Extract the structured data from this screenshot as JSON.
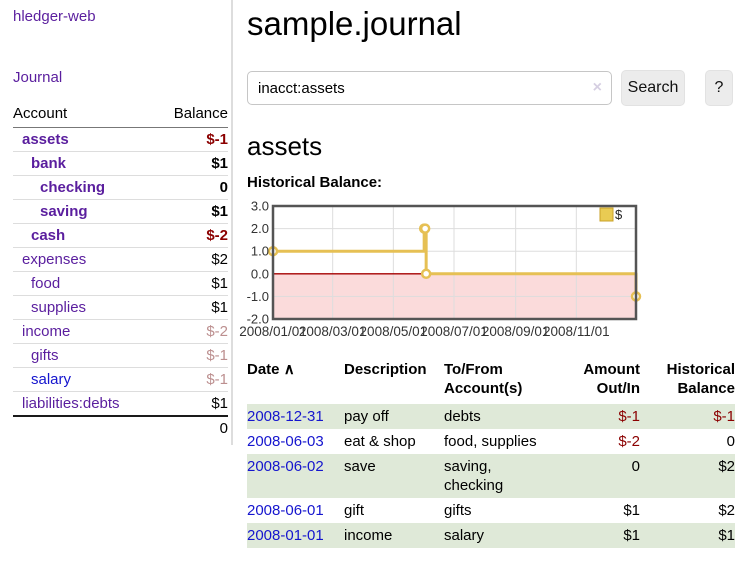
{
  "sidebar": {
    "app_title": "hledger-web",
    "journal_label": "Journal",
    "accounts_table": {
      "headers": {
        "account": "Account",
        "balance": "Balance"
      },
      "rows": [
        {
          "name": "assets",
          "balance": "$-1",
          "depth": 1,
          "bold": true,
          "neg": "strong"
        },
        {
          "name": "bank",
          "balance": "$1",
          "depth": 2,
          "bold": true,
          "neg": "none"
        },
        {
          "name": "checking",
          "balance": "0",
          "depth": 3,
          "bold": true,
          "neg": "none"
        },
        {
          "name": "saving",
          "balance": "$1",
          "depth": 3,
          "bold": true,
          "neg": "none"
        },
        {
          "name": "cash",
          "balance": "$-2",
          "depth": 2,
          "bold": true,
          "neg": "strong"
        },
        {
          "name": "expenses",
          "balance": "$2",
          "depth": 1,
          "bold": false,
          "neg": "none"
        },
        {
          "name": "food",
          "balance": "$1",
          "depth": 2,
          "bold": false,
          "neg": "none"
        },
        {
          "name": "supplies",
          "balance": "$1",
          "depth": 2,
          "bold": false,
          "neg": "none"
        },
        {
          "name": "income",
          "balance": "$-2",
          "depth": 1,
          "bold": false,
          "neg": "muted"
        },
        {
          "name": "gifts",
          "balance": "$-1",
          "depth": 2,
          "bold": false,
          "neg": "muted"
        },
        {
          "name": "salary",
          "balance": "$-1",
          "depth": 2,
          "bold": false,
          "neg": "muted",
          "link_style": "unvisited"
        },
        {
          "name": "liabilities:debts",
          "balance": "$1",
          "depth": 1,
          "bold": false,
          "neg": "none"
        }
      ],
      "total": "0"
    }
  },
  "main": {
    "title": "sample.journal",
    "search": {
      "value": "inacct:assets",
      "clear_icon": "×",
      "button_label": "Search",
      "help_label": "?"
    },
    "account_heading": "assets",
    "chart_label": "Historical Balance:"
  },
  "chart_data": {
    "type": "line",
    "step": true,
    "series": [
      {
        "name": "$",
        "x": [
          "2008-01-01",
          "2008-06-01",
          "2008-06-02",
          "2008-06-03",
          "2008-12-31"
        ],
        "values": [
          1,
          2,
          2,
          0,
          -1
        ]
      }
    ],
    "x_range": [
      "2008-01-01",
      "2008-12-31"
    ],
    "ylim": [
      -2.0,
      3.0
    ],
    "ytick_labels": [
      "3.0",
      "2.0",
      "1.0",
      "0.0",
      "-1.0",
      "-2.0"
    ],
    "yticks": [
      3.0,
      2.0,
      1.0,
      0.0,
      -1.0,
      -2.0
    ],
    "xtick_labels": [
      "2008/01/01",
      "2008/03/01",
      "2008/05/01",
      "2008/07/01",
      "2008/09/01",
      "2008/11/01"
    ],
    "legend": {
      "label": "$",
      "position": "top-right"
    },
    "grid": true,
    "zero_line": true,
    "negative_region_shaded": true
  },
  "register_table": {
    "headers": {
      "date": "Date",
      "sort_indicator": "∧",
      "description": "Description",
      "accounts": "To/From Account(s)",
      "amount": "Amount Out/In",
      "balance": "Historical Balance"
    },
    "rows": [
      {
        "date": "2008-12-31",
        "description": "pay off",
        "accounts": "debts",
        "amount": "$-1",
        "balance": "$-1"
      },
      {
        "date": "2008-06-03",
        "description": "eat & shop",
        "accounts": "food, supplies",
        "amount": "$-2",
        "balance": "0"
      },
      {
        "date": "2008-06-02",
        "description": "save",
        "accounts": "saving, checking",
        "amount": "0",
        "balance": "$2"
      },
      {
        "date": "2008-06-01",
        "description": "gift",
        "accounts": "gifts",
        "amount": "$1",
        "balance": "$2"
      },
      {
        "date": "2008-01-01",
        "description": "income",
        "accounts": "salary",
        "amount": "$1",
        "balance": "$1"
      }
    ]
  },
  "colors": {
    "accent_purple": "#5a1e9e",
    "link_blue": "#1515ce",
    "negative_strong": "#8b0000",
    "negative_muted": "#bc8f8f",
    "row_stripe_green": "#dfe9d8",
    "chart_line_gold": "#e6c054",
    "chart_legend_fill": "#e9cb53",
    "chart_legend_border": "#c9a227",
    "chart_negative_fill": "#fbdbdb",
    "chart_zero_line": "#a40000",
    "chart_border": "#545454",
    "chart_grid": "#dddddd"
  }
}
